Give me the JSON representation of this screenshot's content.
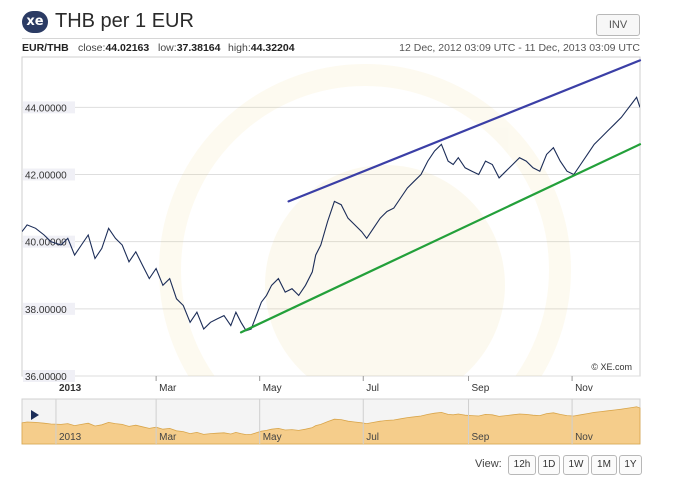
{
  "header": {
    "logo": "xe",
    "title": "THB per 1 EUR",
    "invert_label": "INV"
  },
  "info": {
    "pair": "EUR/THB",
    "close_label": "close:",
    "close": "44.02163",
    "low_label": "low:",
    "low": "37.38164",
    "high_label": "high:",
    "high": "44.32204",
    "date_range": "12 Dec, 2012 03:09 UTC - 11 Dec, 2013 03:09 UTC"
  },
  "watermark": "© XE.com",
  "navigator": {
    "play_icon": "play-icon"
  },
  "range": {
    "label": "View:",
    "buttons": [
      "12h",
      "1D",
      "1W",
      "1M",
      "1Y"
    ]
  },
  "colors": {
    "line": "#1c2d58",
    "upper_trend": "#3b3fa6",
    "lower_trend": "#23a03a",
    "navigator_fill": "#f5cd8b",
    "brand": "#2b3b64"
  },
  "chart_data": {
    "type": "line",
    "ylim": [
      36,
      45.5
    ],
    "xlim": [
      "2012-12-12",
      "2013-12-11"
    ],
    "yticks": [
      "44.00000",
      "42.00000",
      "40.00000",
      "38.00000",
      "36.00000"
    ],
    "ytick_values": [
      44,
      42,
      40,
      38,
      36
    ],
    "xticks": [
      "2013",
      "Mar",
      "May",
      "Jul",
      "Sep",
      "Nov"
    ],
    "xtick_dates": [
      "2013-01-01",
      "2013-03-01",
      "2013-05-01",
      "2013-07-01",
      "2013-09-01",
      "2013-11-01"
    ],
    "series": [
      {
        "x": [
          "2012-12-12",
          "2012-12-15",
          "2012-12-20",
          "2012-12-25",
          "2012-12-29",
          "2013-01-04",
          "2013-01-08",
          "2013-01-12",
          "2013-01-16",
          "2013-01-20",
          "2013-01-24",
          "2013-01-28",
          "2013-02-01",
          "2013-02-05",
          "2013-02-09",
          "2013-02-13",
          "2013-02-17",
          "2013-02-21",
          "2013-02-25",
          "2013-03-01",
          "2013-03-05",
          "2013-03-09",
          "2013-03-13",
          "2013-03-17",
          "2013-03-21",
          "2013-03-25",
          "2013-03-29",
          "2013-04-02",
          "2013-04-06",
          "2013-04-10",
          "2013-04-14",
          "2013-04-17",
          "2013-04-20",
          "2013-04-23",
          "2013-04-26",
          "2013-04-29",
          "2013-05-02",
          "2013-05-05",
          "2013-05-08",
          "2013-05-12",
          "2013-05-16",
          "2013-05-20",
          "2013-05-24",
          "2013-05-28",
          "2013-06-01",
          "2013-06-03",
          "2013-06-06",
          "2013-06-10",
          "2013-06-14",
          "2013-06-18",
          "2013-06-22",
          "2013-06-26",
          "2013-06-30",
          "2013-07-03",
          "2013-07-07",
          "2013-07-11",
          "2013-07-15",
          "2013-07-19",
          "2013-07-23",
          "2013-07-27",
          "2013-07-31",
          "2013-08-04",
          "2013-08-08",
          "2013-08-12",
          "2013-08-16",
          "2013-08-20",
          "2013-08-23",
          "2013-08-26",
          "2013-08-30",
          "2013-09-03",
          "2013-09-07",
          "2013-09-11",
          "2013-09-15",
          "2013-09-19",
          "2013-09-23",
          "2013-09-27",
          "2013-10-01",
          "2013-10-05",
          "2013-10-09",
          "2013-10-13",
          "2013-10-17",
          "2013-10-21",
          "2013-10-25",
          "2013-10-29",
          "2013-11-02",
          "2013-11-06",
          "2013-11-10",
          "2013-11-14",
          "2013-11-18",
          "2013-11-22",
          "2013-11-26",
          "2013-11-30",
          "2013-12-03",
          "2013-12-06",
          "2013-12-09",
          "2013-12-11"
        ],
        "y": [
          40.3,
          40.5,
          40.4,
          40.2,
          40.0,
          39.9,
          40.1,
          39.6,
          39.9,
          40.2,
          39.5,
          39.8,
          40.4,
          40.1,
          39.9,
          39.4,
          39.7,
          39.3,
          38.9,
          39.2,
          38.7,
          38.9,
          38.3,
          38.1,
          37.6,
          37.9,
          37.4,
          37.6,
          37.7,
          37.8,
          37.5,
          37.9,
          37.6,
          37.35,
          37.4,
          37.8,
          38.2,
          38.4,
          38.7,
          38.9,
          38.5,
          38.6,
          38.4,
          38.7,
          39.1,
          39.6,
          39.9,
          40.6,
          41.2,
          41.1,
          40.7,
          40.5,
          40.3,
          40.1,
          40.4,
          40.7,
          40.9,
          41.0,
          41.3,
          41.6,
          41.8,
          42.0,
          42.4,
          42.7,
          42.9,
          42.4,
          42.3,
          42.5,
          42.2,
          42.1,
          42.0,
          42.4,
          42.3,
          41.9,
          42.1,
          42.3,
          42.5,
          42.4,
          42.2,
          42.1,
          42.6,
          42.8,
          42.4,
          42.1,
          42.0,
          42.3,
          42.6,
          42.9,
          43.1,
          43.3,
          43.5,
          43.7,
          43.9,
          44.1,
          44.3,
          44.0
        ]
      }
    ],
    "upper_trendline": {
      "x": [
        "2013-05-18",
        "2013-12-11"
      ],
      "y": [
        41.2,
        45.4
      ]
    },
    "lower_trendline": {
      "x": [
        "2013-04-20",
        "2013-12-11"
      ],
      "y": [
        37.3,
        42.9
      ]
    }
  }
}
